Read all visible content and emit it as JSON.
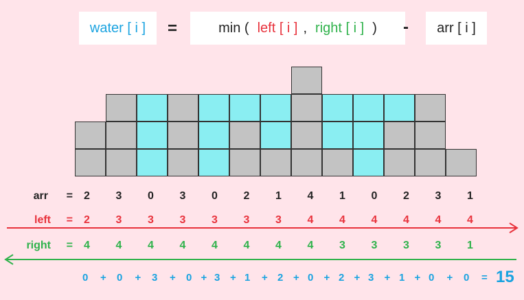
{
  "formula": {
    "lhs": "water [ i ]",
    "eq": "=",
    "min_open": "min (",
    "left_term": "left [ i ]",
    "comma": ",",
    "right_term": "right [ i ]",
    "close": ")",
    "minus": "-",
    "arr_term": "arr [ i ]"
  },
  "arr": [
    2,
    3,
    0,
    3,
    0,
    2,
    1,
    4,
    1,
    0,
    2,
    3,
    1
  ],
  "left": [
    2,
    3,
    3,
    3,
    3,
    3,
    3,
    4,
    4,
    4,
    4,
    4,
    4
  ],
  "right": [
    4,
    4,
    4,
    4,
    4,
    4,
    4,
    4,
    3,
    3,
    3,
    3,
    1
  ],
  "water": [
    0,
    0,
    3,
    0,
    3,
    1,
    2,
    0,
    2,
    3,
    1,
    0,
    0
  ],
  "labels": {
    "arr": "arr",
    "left": "left",
    "right": "right",
    "eq": "="
  },
  "sum": {
    "terms": [
      "0",
      "0",
      "3",
      "0",
      "3",
      "1",
      "2",
      "0",
      "2",
      "3",
      "1",
      "0",
      "0"
    ],
    "plus": "+",
    "eq": "=",
    "total": "15"
  },
  "colors": {
    "background": "#ffe4ea",
    "bar": "#c3c3c3",
    "water": "#8aeef2",
    "blue": "#1aa3e0",
    "red": "#e8323c",
    "green": "#2fb24b"
  }
}
